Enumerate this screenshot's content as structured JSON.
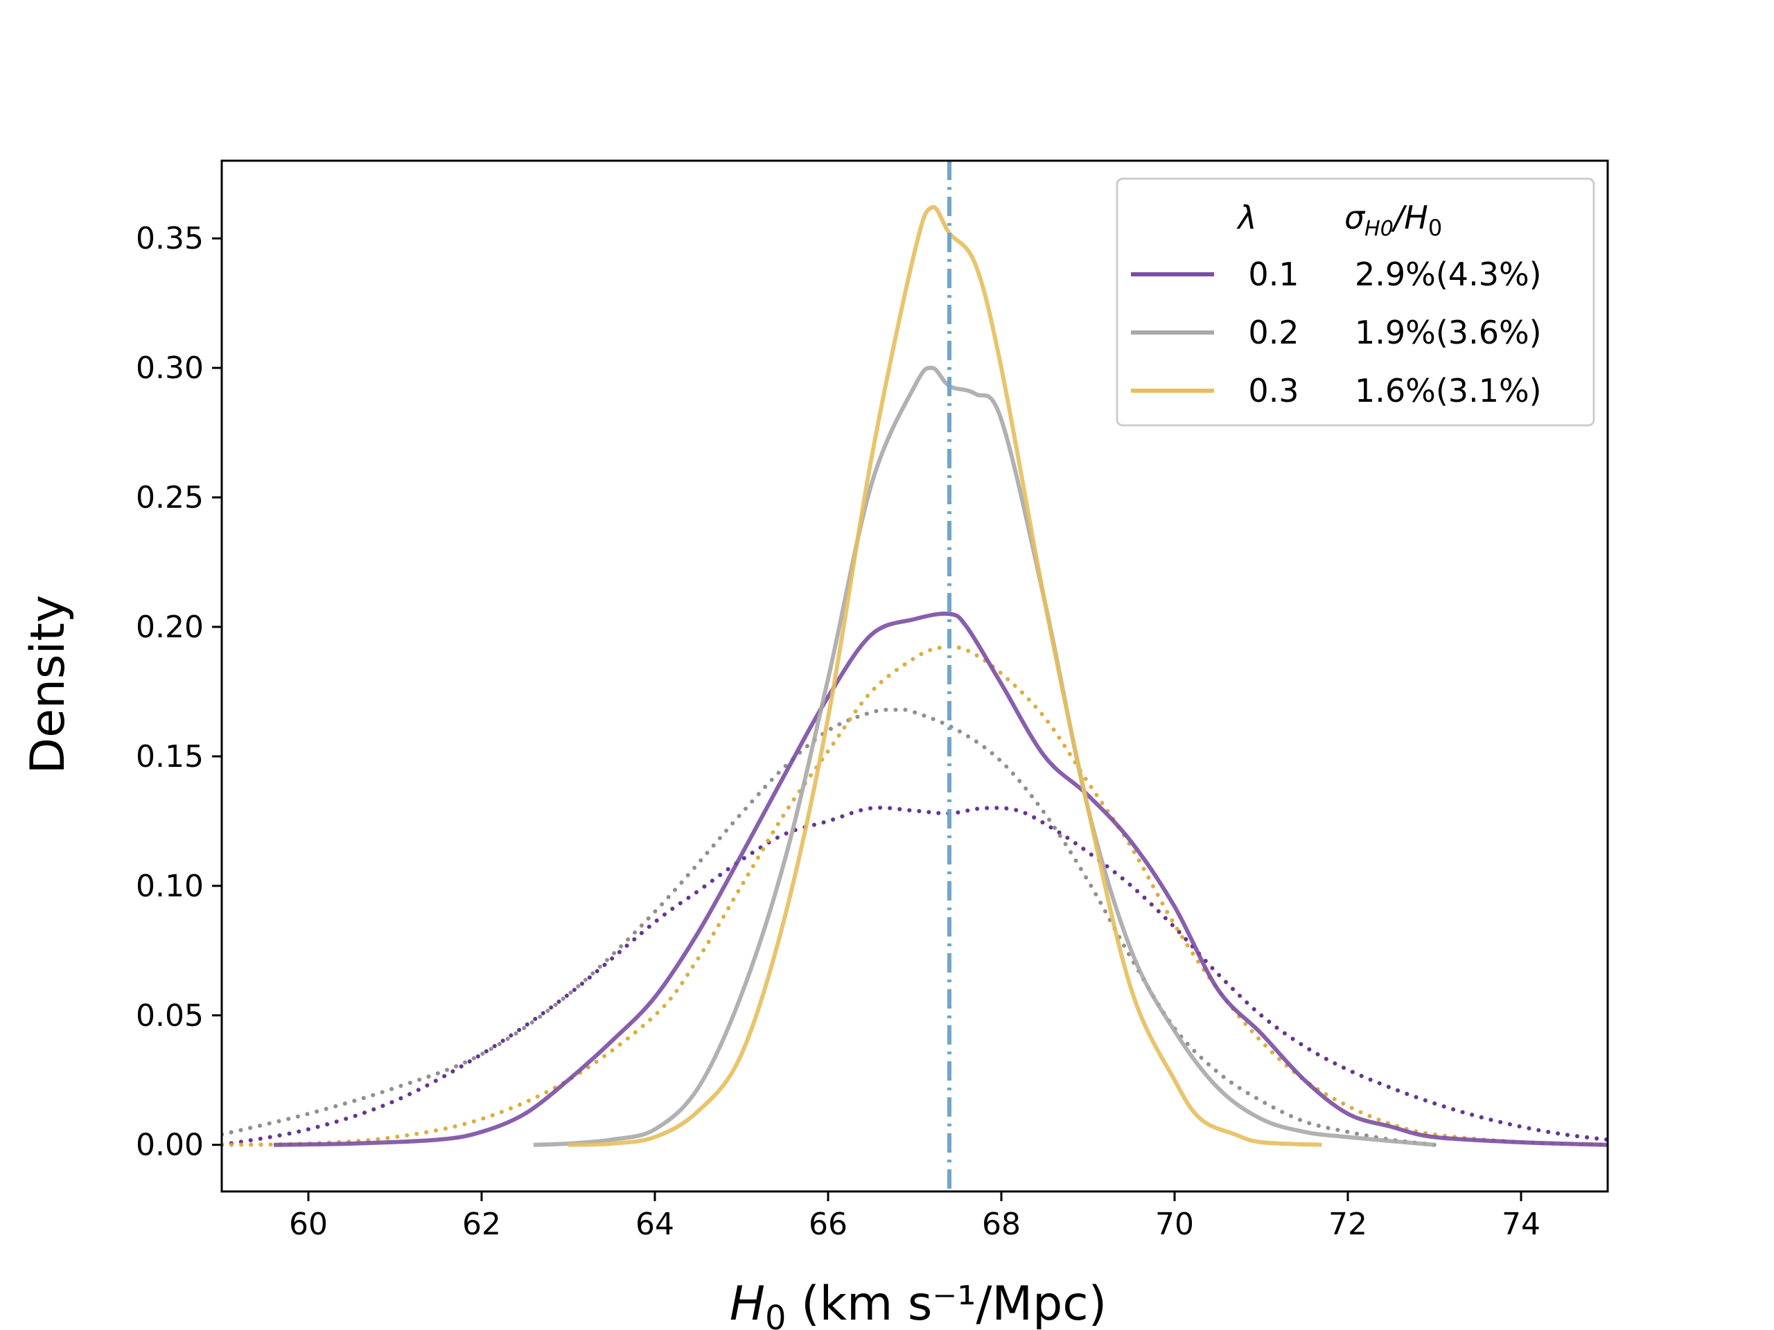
{
  "chart_data": {
    "type": "line",
    "title": "",
    "xlabel": "H0 (km s⁻¹/Mpc)",
    "ylabel": "Density",
    "xlim": [
      59.0,
      75.0
    ],
    "ylim": [
      -0.018,
      0.38
    ],
    "x_ticks": [
      60,
      62,
      64,
      66,
      68,
      70,
      72,
      74
    ],
    "x_tick_labels": [
      "60",
      "62",
      "64",
      "66",
      "68",
      "70",
      "72",
      "74"
    ],
    "y_ticks": [
      0.0,
      0.05,
      0.1,
      0.15,
      0.2,
      0.25,
      0.3,
      0.35
    ],
    "y_tick_labels": [
      "0.00",
      "0.05",
      "0.10",
      "0.15",
      "0.20",
      "0.25",
      "0.30",
      "0.35"
    ],
    "grid": false,
    "reference_line": {
      "x": 67.4,
      "style": "dash-dot",
      "color": "#6fa6cc"
    },
    "legend": {
      "location": "top-right",
      "header_lambda": "λ",
      "header_sigma": "σ",
      "header_sigma_sub": "H0",
      "header_slash": "/H",
      "header_sub0": "0",
      "entries": [
        {
          "lambda": "0.1",
          "sigma": "2.9%(4.3%)",
          "color": "#7b4ea3"
        },
        {
          "lambda": "0.2",
          "sigma": "1.9%(3.6%)",
          "color": "#a9a9a9"
        },
        {
          "lambda": "0.3",
          "sigma": "1.6%(3.1%)",
          "color": "#e6be5c"
        }
      ]
    },
    "series": [
      {
        "name": "λ=0.1 solid",
        "style": "solid",
        "color": "#7b4ea3",
        "x": [
          59.6,
          60.5,
          61.5,
          62.0,
          62.5,
          63.0,
          63.5,
          64.0,
          64.5,
          65.0,
          65.5,
          66.0,
          66.5,
          67.0,
          67.4,
          67.6,
          68.0,
          68.5,
          69.0,
          69.5,
          70.0,
          70.5,
          71.0,
          71.5,
          72.0,
          72.5,
          73.0,
          74.0,
          75.0
        ],
        "values": [
          0.0,
          0.0005,
          0.002,
          0.005,
          0.012,
          0.025,
          0.04,
          0.057,
          0.082,
          0.112,
          0.143,
          0.173,
          0.197,
          0.203,
          0.205,
          0.2,
          0.178,
          0.15,
          0.135,
          0.117,
          0.092,
          0.06,
          0.043,
          0.025,
          0.012,
          0.007,
          0.003,
          0.001,
          0.0
        ]
      },
      {
        "name": "λ=0.2 solid",
        "style": "solid",
        "color": "#a9a9a9",
        "x": [
          62.6,
          63.0,
          63.5,
          64.0,
          64.5,
          65.0,
          65.5,
          66.0,
          66.5,
          67.0,
          67.2,
          67.4,
          67.7,
          68.0,
          68.5,
          69.0,
          69.5,
          70.0,
          70.5,
          71.0,
          71.5,
          72.0,
          73.0
        ],
        "values": [
          0.0,
          0.0005,
          0.002,
          0.006,
          0.022,
          0.058,
          0.11,
          0.18,
          0.255,
          0.293,
          0.3,
          0.293,
          0.29,
          0.28,
          0.21,
          0.13,
          0.075,
          0.044,
          0.022,
          0.01,
          0.005,
          0.003,
          0.0
        ]
      },
      {
        "name": "λ=0.3 solid",
        "style": "solid",
        "color": "#e6be5c",
        "x": [
          63.0,
          63.5,
          64.0,
          64.5,
          65.0,
          65.5,
          66.0,
          66.5,
          67.0,
          67.2,
          67.4,
          67.7,
          68.0,
          68.5,
          69.0,
          69.5,
          70.0,
          70.3,
          70.7,
          71.0,
          71.7
        ],
        "values": [
          0.0,
          0.0005,
          0.003,
          0.013,
          0.035,
          0.088,
          0.165,
          0.265,
          0.345,
          0.362,
          0.352,
          0.34,
          0.3,
          0.21,
          0.13,
          0.06,
          0.025,
          0.01,
          0.004,
          0.001,
          0.0
        ]
      },
      {
        "name": "λ=0.1 dotted",
        "style": "dotted",
        "color": "#5e2a8c",
        "x": [
          59.0,
          60.0,
          61.0,
          62.0,
          63.0,
          64.0,
          64.5,
          65.0,
          65.5,
          66.0,
          66.5,
          67.0,
          67.4,
          67.8,
          68.2,
          68.6,
          69.0,
          69.5,
          70.0,
          70.5,
          71.0,
          71.5,
          72.0,
          72.5,
          73.0,
          73.5,
          74.0,
          74.5,
          75.0
        ],
        "values": [
          0.0,
          0.006,
          0.017,
          0.035,
          0.058,
          0.086,
          0.098,
          0.11,
          0.12,
          0.125,
          0.13,
          0.129,
          0.128,
          0.13,
          0.129,
          0.122,
          0.113,
          0.1,
          0.084,
          0.066,
          0.05,
          0.038,
          0.029,
          0.022,
          0.016,
          0.011,
          0.007,
          0.004,
          0.002
        ]
      },
      {
        "name": "λ=0.2 dotted",
        "style": "dotted",
        "color": "#8a8a8a",
        "x": [
          59.0,
          60.0,
          61.0,
          62.0,
          63.0,
          64.0,
          65.0,
          65.5,
          66.0,
          66.5,
          66.8,
          67.0,
          67.5,
          68.0,
          68.5,
          69.0,
          69.5,
          70.0,
          70.5,
          71.0,
          71.5,
          72.0,
          72.5,
          73.0
        ],
        "values": [
          0.004,
          0.012,
          0.022,
          0.035,
          0.058,
          0.09,
          0.128,
          0.146,
          0.16,
          0.167,
          0.168,
          0.167,
          0.16,
          0.148,
          0.128,
          0.102,
          0.072,
          0.045,
          0.028,
          0.017,
          0.009,
          0.005,
          0.002,
          0.0
        ]
      },
      {
        "name": "λ=0.3 dotted",
        "style": "dotted",
        "color": "#d9ab35",
        "x": [
          59.0,
          60.0,
          61.0,
          62.0,
          63.0,
          64.0,
          64.5,
          65.0,
          65.5,
          66.0,
          66.5,
          67.0,
          67.3,
          67.6,
          68.0,
          68.5,
          69.0,
          69.5,
          70.0,
          70.5,
          71.0,
          71.5,
          72.0,
          72.5,
          73.0,
          74.0,
          75.0
        ],
        "values": [
          0.0,
          0.0005,
          0.003,
          0.01,
          0.025,
          0.05,
          0.072,
          0.1,
          0.128,
          0.152,
          0.175,
          0.188,
          0.192,
          0.191,
          0.182,
          0.165,
          0.14,
          0.115,
          0.085,
          0.06,
          0.04,
          0.025,
          0.015,
          0.008,
          0.004,
          0.001,
          0.0
        ]
      }
    ]
  }
}
